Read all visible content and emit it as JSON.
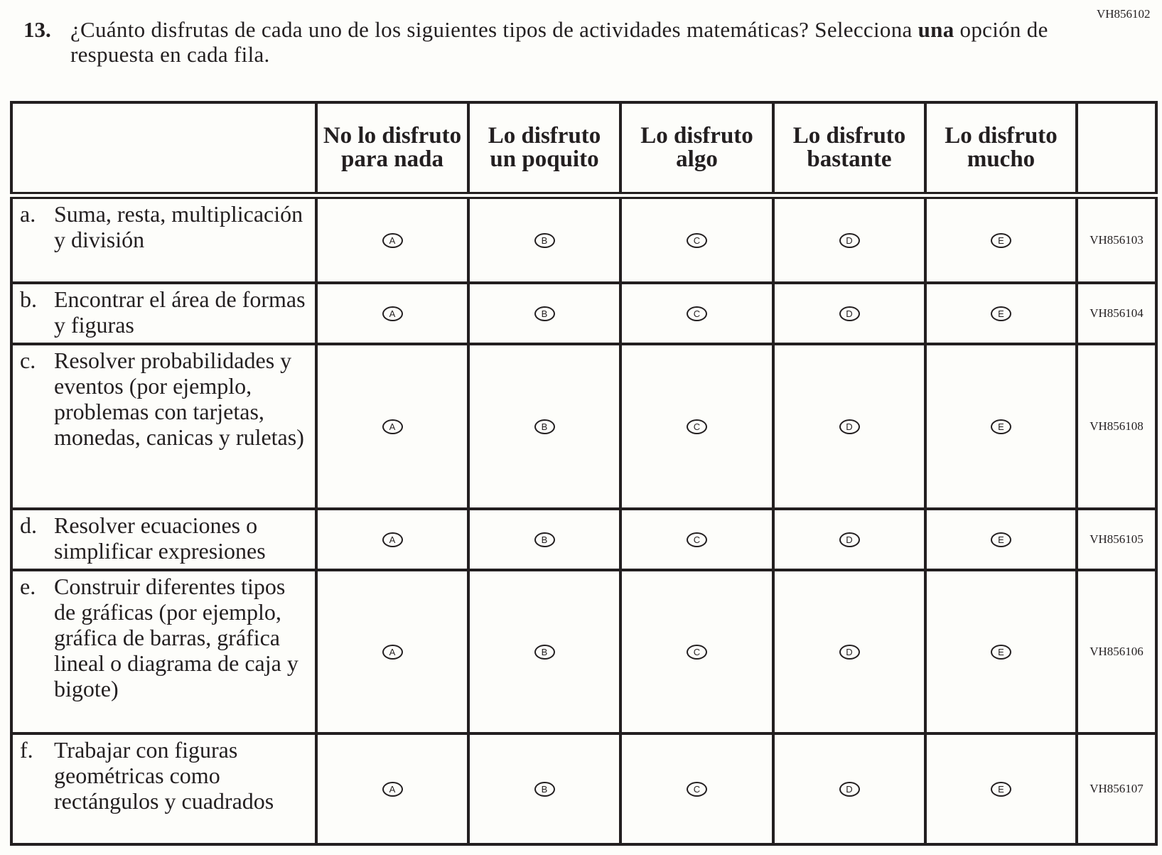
{
  "page_code": "VH856102",
  "question": {
    "number": "13.",
    "text_before": "¿Cuánto disfrutas de cada uno de los siguientes tipos de actividades matemáticas? Selecciona ",
    "text_bold": "una",
    "text_after": " opción de respuesta en cada fila."
  },
  "columns": [
    "No lo disfruto para nada",
    "Lo disfruto un poquito",
    "Lo disfruto algo",
    "Lo disfruto bastante",
    "Lo disfruto mucho"
  ],
  "options": [
    "A",
    "B",
    "C",
    "D",
    "E"
  ],
  "rows": [
    {
      "letter": "a.",
      "text": "Suma, resta, multiplicación y división",
      "code": "VH856103"
    },
    {
      "letter": "b.",
      "text": "Encontrar el área de formas y figuras",
      "code": "VH856104"
    },
    {
      "letter": "c.",
      "text": "Resolver probabilidades y eventos (por ejemplo, problemas con tarjetas, monedas, canicas y ruletas)",
      "code": "VH856108"
    },
    {
      "letter": "d.",
      "text": "Resolver ecuaciones o simplificar expresiones",
      "code": "VH856105"
    },
    {
      "letter": "e.",
      "text": "Construir diferentes tipos de gráficas (por ejemplo, gráfica de barras, gráfica lineal o diagrama de caja y bigote)",
      "code": "VH856106"
    },
    {
      "letter": "f.",
      "text": "Trabajar con figuras geométricas como rectángulos y cuadrados",
      "code": "VH856107"
    }
  ]
}
